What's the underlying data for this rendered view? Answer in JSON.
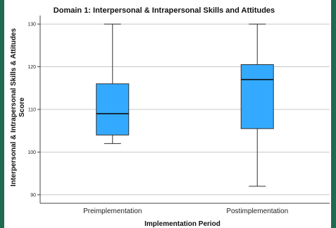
{
  "chart_data": {
    "type": "boxplot",
    "title": "Domain 1: Interpersonal & Intrapersonal Skills and Attitudes",
    "xlabel": "Implementation Period",
    "ylabel_lines": [
      "Interpersonal & Intrapersonal Skills & Attitudes",
      "Score"
    ],
    "categories": [
      "Preimplementation",
      "Postimplementation"
    ],
    "boxes": [
      {
        "category": "Preimplementation",
        "min": 102,
        "q1": 104,
        "median": 109,
        "q3": 116,
        "max": 130
      },
      {
        "category": "Postimplementation",
        "min": 92,
        "q1": 105.5,
        "median": 117,
        "q3": 120.5,
        "max": 130
      }
    ],
    "yticks": [
      90,
      100,
      110,
      120,
      130
    ],
    "ylim": [
      88,
      132
    ],
    "grid": true,
    "box_color": "#33aaff"
  }
}
